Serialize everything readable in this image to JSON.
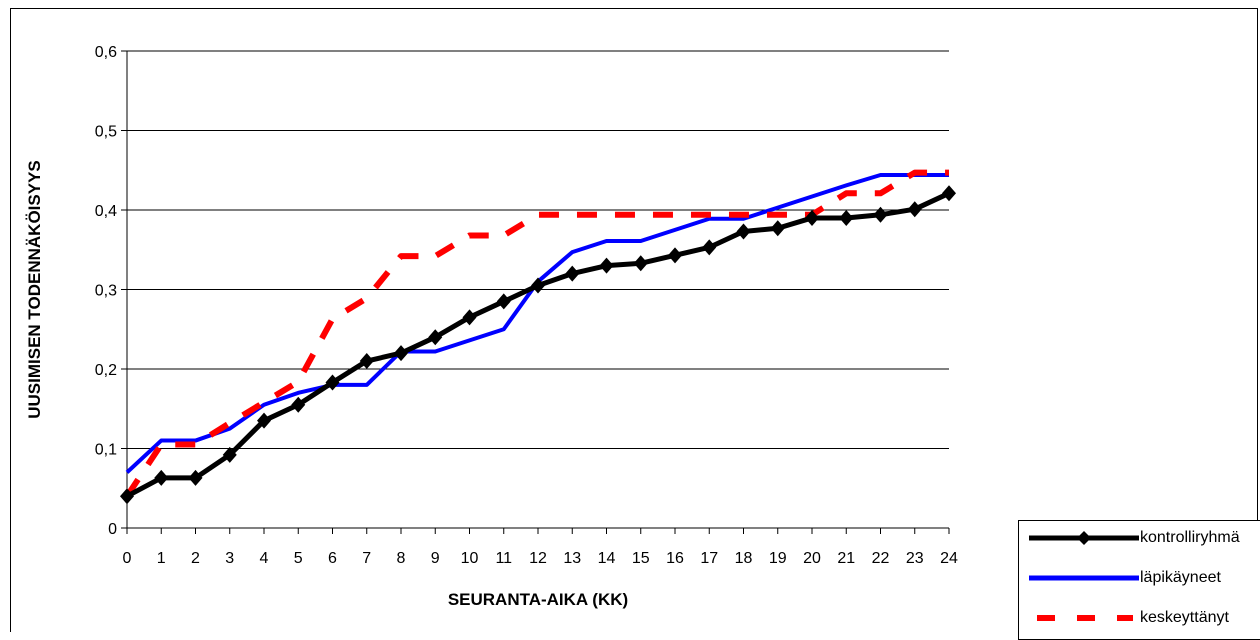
{
  "chart_data": {
    "type": "line",
    "title": "",
    "xlabel": "SEURANTA-AIKA (KK)",
    "ylabel": "UUSIMISEN TODENNÄKÖISYYS",
    "x": [
      0,
      1,
      2,
      3,
      4,
      5,
      6,
      7,
      8,
      9,
      10,
      11,
      12,
      13,
      14,
      15,
      16,
      17,
      18,
      19,
      20,
      21,
      22,
      23,
      24
    ],
    "ylim": [
      0,
      0.6
    ],
    "ytick_labels": [
      "0",
      "0,1",
      "0,2",
      "0,3",
      "0,4",
      "0,5",
      "0,6"
    ],
    "grid": "horizontal",
    "legend_position": "bottom-right",
    "series": [
      {
        "name": "kontrolliryhmä",
        "color": "#000000",
        "style": "solid-diamond-markers",
        "values": [
          0.04,
          0.063,
          0.063,
          0.092,
          0.135,
          0.155,
          0.183,
          0.21,
          0.22,
          0.24,
          0.265,
          0.285,
          0.305,
          0.32,
          0.33,
          0.333,
          0.343,
          0.353,
          0.373,
          0.377,
          0.39,
          0.39,
          0.394,
          0.401,
          0.421
        ]
      },
      {
        "name": "läpikäyneet",
        "color": "#0000ff",
        "style": "solid",
        "values": [
          0.07,
          0.11,
          0.11,
          0.125,
          0.155,
          0.17,
          0.18,
          0.18,
          0.222,
          0.222,
          0.236,
          0.25,
          0.31,
          0.347,
          0.361,
          0.361,
          0.375,
          0.389,
          0.389,
          0.403,
          0.417,
          0.431,
          0.444,
          0.444,
          0.444
        ]
      },
      {
        "name": "keskeyttänyt",
        "color": "#ff0000",
        "style": "dashed",
        "values": [
          0.04,
          0.105,
          0.105,
          0.132,
          0.158,
          0.184,
          0.263,
          0.289,
          0.342,
          0.342,
          0.368,
          0.368,
          0.394,
          0.394,
          0.394,
          0.394,
          0.394,
          0.394,
          0.394,
          0.394,
          0.394,
          0.421,
          0.421,
          0.447,
          0.447
        ]
      }
    ]
  }
}
